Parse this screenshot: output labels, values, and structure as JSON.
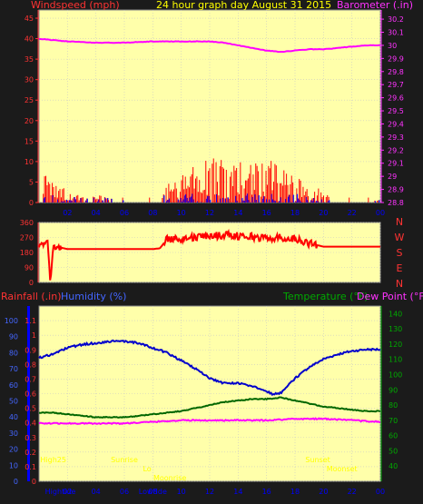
{
  "page": {
    "subtitle": "24 hour graph day   August 31 2015"
  },
  "colors": {
    "background": "#1b1b1b",
    "plot_bg": "#ffffaa",
    "grid": "#c8c8c8",
    "wind": "#ff0000",
    "gust_bars": "#0000ff",
    "barometer": "#ff00ff",
    "direction": "#ff0000",
    "humidity": "#0000cc",
    "temperature": "#006600",
    "dewpoint": "#ff00ff",
    "rain_axis": "#0000ff",
    "annotation": "#ffff00",
    "title_red": "#ff3333",
    "title_magenta": "#ff33ff",
    "title_green": "#00aa00",
    "title_blue": "#4466ff"
  },
  "chart_data": [
    {
      "type": "line",
      "name": "wind-barometer",
      "title_left": "Windspeed (mph)",
      "title_right": "Barometer (.in)",
      "x_ticks": [
        "02",
        "04",
        "06",
        "08",
        "10",
        "12",
        "14",
        "16",
        "18",
        "20",
        "22",
        "00"
      ],
      "y_left_ticks": [
        "0",
        "5",
        "10",
        "15",
        "20",
        "25",
        "30",
        "35",
        "40",
        "45"
      ],
      "y_left_range": [
        0,
        47
      ],
      "y_right_ticks": [
        "28.8",
        "28.9",
        "29",
        "29.1",
        "29.2",
        "29.3",
        "29.4",
        "29.5",
        "29.6",
        "29.7",
        "29.8",
        "29.9",
        "30",
        "30.1",
        "30.2"
      ],
      "y_right_range": [
        28.8,
        30.27
      ],
      "barometer": {
        "x": [
          0,
          2,
          4,
          6,
          8,
          10,
          12,
          13,
          14,
          15,
          16,
          17,
          18,
          19,
          20,
          21,
          22,
          23,
          24
        ],
        "y": [
          30.05,
          30.03,
          30.02,
          30.02,
          30.03,
          30.03,
          30.03,
          30.02,
          30.0,
          29.98,
          29.96,
          29.95,
          29.96,
          29.97,
          29.97,
          29.98,
          29.99,
          30.0,
          30.0
        ]
      },
      "wind_envelope": {
        "x": [
          0,
          1,
          2,
          3,
          4,
          5,
          6,
          7,
          8,
          9,
          10,
          11,
          12,
          13,
          14,
          15,
          16,
          17,
          18,
          19,
          20,
          21,
          22,
          23,
          24
        ],
        "y": [
          9,
          6,
          3,
          2,
          2,
          1,
          0,
          1,
          3,
          5,
          7,
          9,
          11,
          11,
          10,
          10,
          11,
          9,
          7,
          5,
          3,
          1,
          1,
          1,
          1
        ]
      }
    },
    {
      "type": "line",
      "name": "wind-direction",
      "y_left_ticks": [
        "360",
        "270",
        "180",
        "90",
        "0"
      ],
      "y_left_range": [
        0,
        360
      ],
      "compass_labels": [
        "N",
        "W",
        "S",
        "E",
        "N"
      ],
      "direction": {
        "x": [
          0,
          0.3,
          0.6,
          0.8,
          1.0,
          1.2,
          1.5,
          2,
          3,
          4,
          5,
          6,
          7,
          8,
          8.5,
          9,
          10,
          11,
          12,
          13,
          14,
          15,
          16,
          17,
          18,
          19,
          20,
          21,
          22,
          23,
          24
        ],
        "y": [
          215,
          230,
          250,
          0,
          230,
          200,
          210,
          200,
          200,
          200,
          200,
          200,
          200,
          200,
          205,
          260,
          265,
          270,
          280,
          285,
          280,
          275,
          265,
          270,
          260,
          235,
          215,
          215,
          215,
          215,
          215
        ]
      }
    },
    {
      "type": "line",
      "name": "temp-humidity-rain",
      "title_rain": "Rainfall (.in)",
      "title_humidity": "Humidity (%)",
      "title_temp": "Temperature (°F)",
      "title_dew": "Dew Point (°F)",
      "y_rain_ticks": [
        "0",
        "0.1",
        "0.2",
        "0.3",
        "0.4",
        "0.5",
        "0.6",
        "0.7",
        "0.8",
        "0.9",
        "1",
        "1.1"
      ],
      "y_rain_range": [
        0,
        1.2
      ],
      "y_hum_ticks": [
        "0",
        "10",
        "20",
        "30",
        "40",
        "50",
        "60",
        "70",
        "80",
        "90",
        "100"
      ],
      "y_hum_range": [
        0,
        109
      ],
      "y_temp_ticks": [
        "40",
        "50",
        "60",
        "70",
        "80",
        "90",
        "100",
        "110",
        "120",
        "130",
        "140"
      ],
      "y_temp_range": [
        30,
        145
      ],
      "annotations": [
        {
          "text": "High25",
          "x": 1.0,
          "row": "top"
        },
        {
          "text": "Sunrise",
          "x": 6.0,
          "row": "top"
        },
        {
          "text": "Lo",
          "x": 7.6,
          "row": "mid"
        },
        {
          "text": "Moonrise",
          "x": 9.2,
          "row": "bottom"
        },
        {
          "text": "Sunset",
          "x": 19.6,
          "row": "top"
        },
        {
          "text": "Moonset",
          "x": 21.3,
          "row": "mid"
        },
        {
          "text": "Hightide",
          "x": 1.5,
          "row": "axis"
        },
        {
          "text": "Lowtide",
          "x": 8.0,
          "row": "axis"
        }
      ],
      "humidity": {
        "x": [
          0,
          1,
          2,
          3,
          4,
          5,
          6,
          7,
          8,
          9,
          10,
          11,
          12,
          13,
          14,
          15,
          16,
          16.5,
          17,
          18,
          19,
          20,
          21,
          22,
          23,
          24
        ],
        "y": [
          77,
          79,
          83,
          85,
          86,
          87,
          87,
          86,
          83,
          80,
          75,
          70,
          64,
          61,
          61,
          59,
          56,
          54,
          55,
          64,
          71,
          76,
          79,
          81,
          82,
          82
        ]
      },
      "temperature": {
        "x": [
          0,
          1,
          2,
          3,
          4,
          5,
          6,
          7,
          8,
          9,
          10,
          11,
          12,
          13,
          14,
          15,
          16,
          17,
          18,
          19,
          20,
          21,
          22,
          23,
          24
        ],
        "y": [
          75,
          75,
          74,
          73,
          72,
          72,
          72,
          73,
          74,
          75,
          76,
          78,
          80,
          82,
          83,
          84,
          84,
          85,
          83,
          81,
          79,
          78,
          77,
          76,
          76
        ]
      },
      "dewpoint": {
        "x": [
          0,
          2,
          4,
          6,
          8,
          10,
          12,
          14,
          16,
          18,
          20,
          22,
          24
        ],
        "y": [
          68,
          68,
          68,
          68,
          69,
          70,
          70,
          70,
          70,
          71,
          71,
          70,
          69
        ]
      }
    }
  ]
}
